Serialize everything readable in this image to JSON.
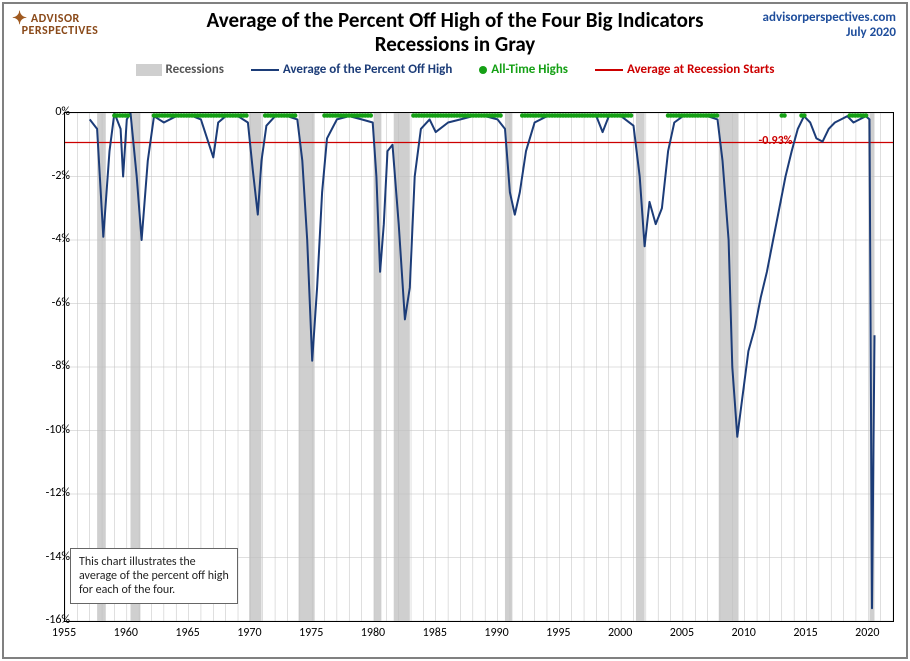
{
  "branding": {
    "logo_line1": "ADVISOR",
    "logo_line2": "PERSPECTIVES",
    "site": "advisorperspectives.com",
    "date": "July 2020"
  },
  "title": {
    "line1": "Average of the Percent Off High of the Four Big Indicators",
    "line2": "Recessions in Gray"
  },
  "legend": {
    "recessions": "Recessions",
    "main": "Average of the Percent Off High",
    "highs": "All-Time Highs",
    "avg_start": "Average at Recession Starts"
  },
  "note": "This chart illustrates the average of the percent off high for each of the four.",
  "chart": {
    "type": "line",
    "xlim": [
      1955,
      2022
    ],
    "ylim": [
      -16,
      0
    ],
    "ytick_step": 2,
    "xtick_step": 5,
    "background_color": "#ffffff",
    "grid_color": "#bfbfbf",
    "recession_color": "#cfcfcf",
    "line_color": "#1c3c78",
    "line_width": 2,
    "dot_color": "#15a015",
    "ref_line_color": "#cc0000",
    "ref_value": -0.93,
    "ref_label": "-0.93%",
    "title_fontsize": 21,
    "label_fontsize": 12,
    "recessions": [
      [
        1957.6,
        1958.3
      ],
      [
        1960.3,
        1961.1
      ],
      [
        1969.9,
        1970.9
      ],
      [
        1973.9,
        1975.2
      ],
      [
        1980.0,
        1980.6
      ],
      [
        1981.6,
        1982.9
      ],
      [
        1990.6,
        1991.2
      ],
      [
        2001.2,
        2001.9
      ],
      [
        2007.9,
        2009.5
      ],
      [
        2020.1,
        2020.5
      ]
    ],
    "high_clusters": [
      [
        1959.0,
        1960.2
      ],
      [
        1962.2,
        1969.8
      ],
      [
        1971.2,
        1973.8
      ],
      [
        1976.0,
        1979.9
      ],
      [
        1983.2,
        1990.4
      ],
      [
        1992.0,
        2000.9
      ],
      [
        2003.8,
        2007.8
      ],
      [
        2013.0,
        2013.4
      ],
      [
        2014.6,
        2015.0
      ],
      [
        2018.5,
        2020.0
      ]
    ],
    "series": [
      [
        1957.0,
        -0.2
      ],
      [
        1957.6,
        -0.5
      ],
      [
        1958.1,
        -3.9
      ],
      [
        1958.6,
        -1.2
      ],
      [
        1959.0,
        0.0
      ],
      [
        1959.5,
        -0.5
      ],
      [
        1959.7,
        -2.0
      ],
      [
        1960.0,
        -0.2
      ],
      [
        1960.3,
        0.0
      ],
      [
        1960.8,
        -2.0
      ],
      [
        1961.2,
        -4.0
      ],
      [
        1961.7,
        -1.5
      ],
      [
        1962.2,
        -0.1
      ],
      [
        1963.0,
        -0.3
      ],
      [
        1964.0,
        -0.1
      ],
      [
        1965.0,
        -0.05
      ],
      [
        1966.0,
        -0.2
      ],
      [
        1966.5,
        -0.8
      ],
      [
        1967.0,
        -1.4
      ],
      [
        1967.4,
        -0.3
      ],
      [
        1968.0,
        -0.1
      ],
      [
        1969.0,
        -0.1
      ],
      [
        1969.8,
        -0.3
      ],
      [
        1970.2,
        -1.8
      ],
      [
        1970.6,
        -3.2
      ],
      [
        1970.9,
        -1.5
      ],
      [
        1971.3,
        -0.4
      ],
      [
        1972.0,
        -0.1
      ],
      [
        1973.0,
        -0.1
      ],
      [
        1973.8,
        -0.2
      ],
      [
        1974.2,
        -1.5
      ],
      [
        1974.6,
        -4.0
      ],
      [
        1975.0,
        -7.8
      ],
      [
        1975.4,
        -5.5
      ],
      [
        1975.8,
        -2.5
      ],
      [
        1976.2,
        -0.8
      ],
      [
        1977.0,
        -0.2
      ],
      [
        1978.0,
        -0.1
      ],
      [
        1979.0,
        -0.2
      ],
      [
        1979.9,
        -0.3
      ],
      [
        1980.2,
        -2.0
      ],
      [
        1980.5,
        -5.0
      ],
      [
        1980.8,
        -3.5
      ],
      [
        1981.1,
        -1.2
      ],
      [
        1981.5,
        -1.0
      ],
      [
        1982.0,
        -3.5
      ],
      [
        1982.5,
        -6.5
      ],
      [
        1982.9,
        -5.5
      ],
      [
        1983.3,
        -2.0
      ],
      [
        1983.8,
        -0.5
      ],
      [
        1984.5,
        -0.2
      ],
      [
        1985.0,
        -0.6
      ],
      [
        1986.0,
        -0.3
      ],
      [
        1987.0,
        -0.2
      ],
      [
        1988.0,
        -0.1
      ],
      [
        1989.0,
        -0.1
      ],
      [
        1990.0,
        -0.2
      ],
      [
        1990.6,
        -0.5
      ],
      [
        1991.0,
        -2.5
      ],
      [
        1991.4,
        -3.2
      ],
      [
        1991.8,
        -2.5
      ],
      [
        1992.3,
        -1.2
      ],
      [
        1993.0,
        -0.3
      ],
      [
        1994.0,
        -0.1
      ],
      [
        1995.0,
        -0.1
      ],
      [
        1996.0,
        -0.05
      ],
      [
        1997.0,
        -0.05
      ],
      [
        1998.0,
        -0.1
      ],
      [
        1998.5,
        -0.6
      ],
      [
        1999.0,
        -0.1
      ],
      [
        2000.0,
        -0.1
      ],
      [
        2001.0,
        -0.4
      ],
      [
        2001.5,
        -2.0
      ],
      [
        2001.9,
        -4.2
      ],
      [
        2002.3,
        -2.8
      ],
      [
        2002.8,
        -3.5
      ],
      [
        2003.3,
        -3.0
      ],
      [
        2003.8,
        -1.2
      ],
      [
        2004.3,
        -0.3
      ],
      [
        2005.0,
        -0.1
      ],
      [
        2006.0,
        -0.1
      ],
      [
        2007.0,
        -0.1
      ],
      [
        2007.8,
        -0.2
      ],
      [
        2008.2,
        -1.5
      ],
      [
        2008.7,
        -4.0
      ],
      [
        2009.0,
        -8.0
      ],
      [
        2009.4,
        -10.2
      ],
      [
        2009.8,
        -9.0
      ],
      [
        2010.3,
        -7.5
      ],
      [
        2010.8,
        -6.8
      ],
      [
        2011.3,
        -5.8
      ],
      [
        2011.8,
        -5.0
      ],
      [
        2012.3,
        -4.0
      ],
      [
        2012.8,
        -3.0
      ],
      [
        2013.3,
        -2.0
      ],
      [
        2013.8,
        -1.2
      ],
      [
        2014.3,
        -0.5
      ],
      [
        2014.8,
        -0.1
      ],
      [
        2015.3,
        -0.3
      ],
      [
        2015.8,
        -0.8
      ],
      [
        2016.3,
        -0.9
      ],
      [
        2016.8,
        -0.5
      ],
      [
        2017.3,
        -0.3
      ],
      [
        2017.8,
        -0.2
      ],
      [
        2018.3,
        -0.1
      ],
      [
        2018.8,
        -0.3
      ],
      [
        2019.3,
        -0.2
      ],
      [
        2019.8,
        -0.1
      ],
      [
        2020.1,
        -0.2
      ],
      [
        2020.3,
        -15.6
      ],
      [
        2020.5,
        -7.0
      ]
    ]
  }
}
